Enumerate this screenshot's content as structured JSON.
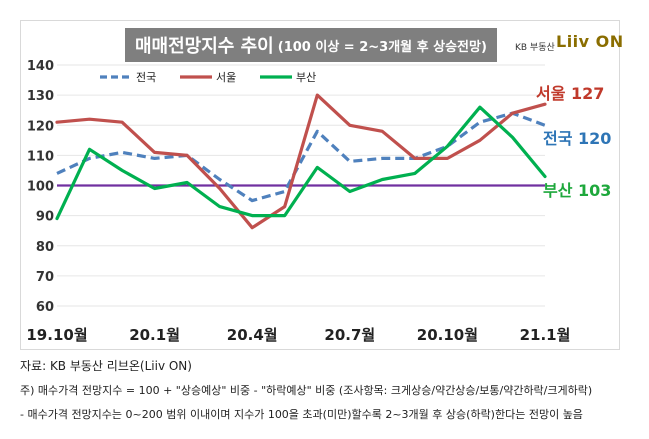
{
  "title": "매매전망지수 추이",
  "subtitle": "(100 이상 = 2~3개월 후 상승전망)",
  "brand": {
    "text": "KB 부동산",
    "logo": "Liiv ON",
    "logo_color": "#8a6d00"
  },
  "end_labels": [
    {
      "series": "서울",
      "text": "서울 127",
      "color": "#c0392b"
    },
    {
      "series": "전국",
      "text": "전국 120",
      "color": "#2e75b6"
    },
    {
      "series": "부산",
      "text": "부산 103",
      "color": "#1ea83c"
    }
  ],
  "notes": {
    "source": "자료: KB 부동산  리브온(Liiv ON)",
    "note1": "주) 매수가격 전망지수 = 100 + \"상승예상\" 비중 - \"하락예상\" 비중 (조사항목: 크게상승/약간상승/보통/약간하락/크게하락)",
    "note2": "- 매수가격 전망지수는 0~200 범위 이내이며 지수가 100을 초과(미만)할수록 2~3개월 후 상승(하락)한다는 전망이 높음"
  },
  "chart_data": {
    "type": "line",
    "title": "매매전망지수 추이",
    "subtitle": "(100 이상 = 2~3개월 후 상승전망)",
    "x": [
      "19.10",
      "19.11",
      "19.12",
      "20.1",
      "20.2",
      "20.3",
      "20.4",
      "20.5",
      "20.6",
      "20.7",
      "20.8",
      "20.9",
      "20.10",
      "20.11",
      "20.12",
      "21.1"
    ],
    "x_tick_labels": [
      "19.10월",
      "20.1월",
      "20.4월",
      "20.7월",
      "20.10월",
      "21.1월"
    ],
    "y_tick_labels": [
      "60",
      "70",
      "80",
      "90",
      "100",
      "110",
      "120",
      "130",
      "140"
    ],
    "ylim": [
      60,
      140
    ],
    "reference_line": {
      "value": 100,
      "color": "#7030a0"
    },
    "legend_position": "top-left",
    "grid": true,
    "series": [
      {
        "name": "전국",
        "color": "#4f81bd",
        "style": "dashed",
        "values": [
          104,
          109,
          111,
          109,
          110,
          102,
          95,
          98,
          118,
          108,
          109,
          109,
          113,
          121,
          124,
          120
        ]
      },
      {
        "name": "서울",
        "color": "#c0504d",
        "style": "solid",
        "values": [
          121,
          122,
          121,
          111,
          110,
          99,
          86,
          93,
          130,
          120,
          118,
          109,
          109,
          115,
          124,
          127
        ]
      },
      {
        "name": "부산",
        "color": "#00b050",
        "style": "solid",
        "values": [
          89,
          112,
          105,
          99,
          101,
          93,
          90,
          90,
          106,
          98,
          102,
          104,
          113,
          126,
          116,
          103
        ]
      }
    ]
  }
}
